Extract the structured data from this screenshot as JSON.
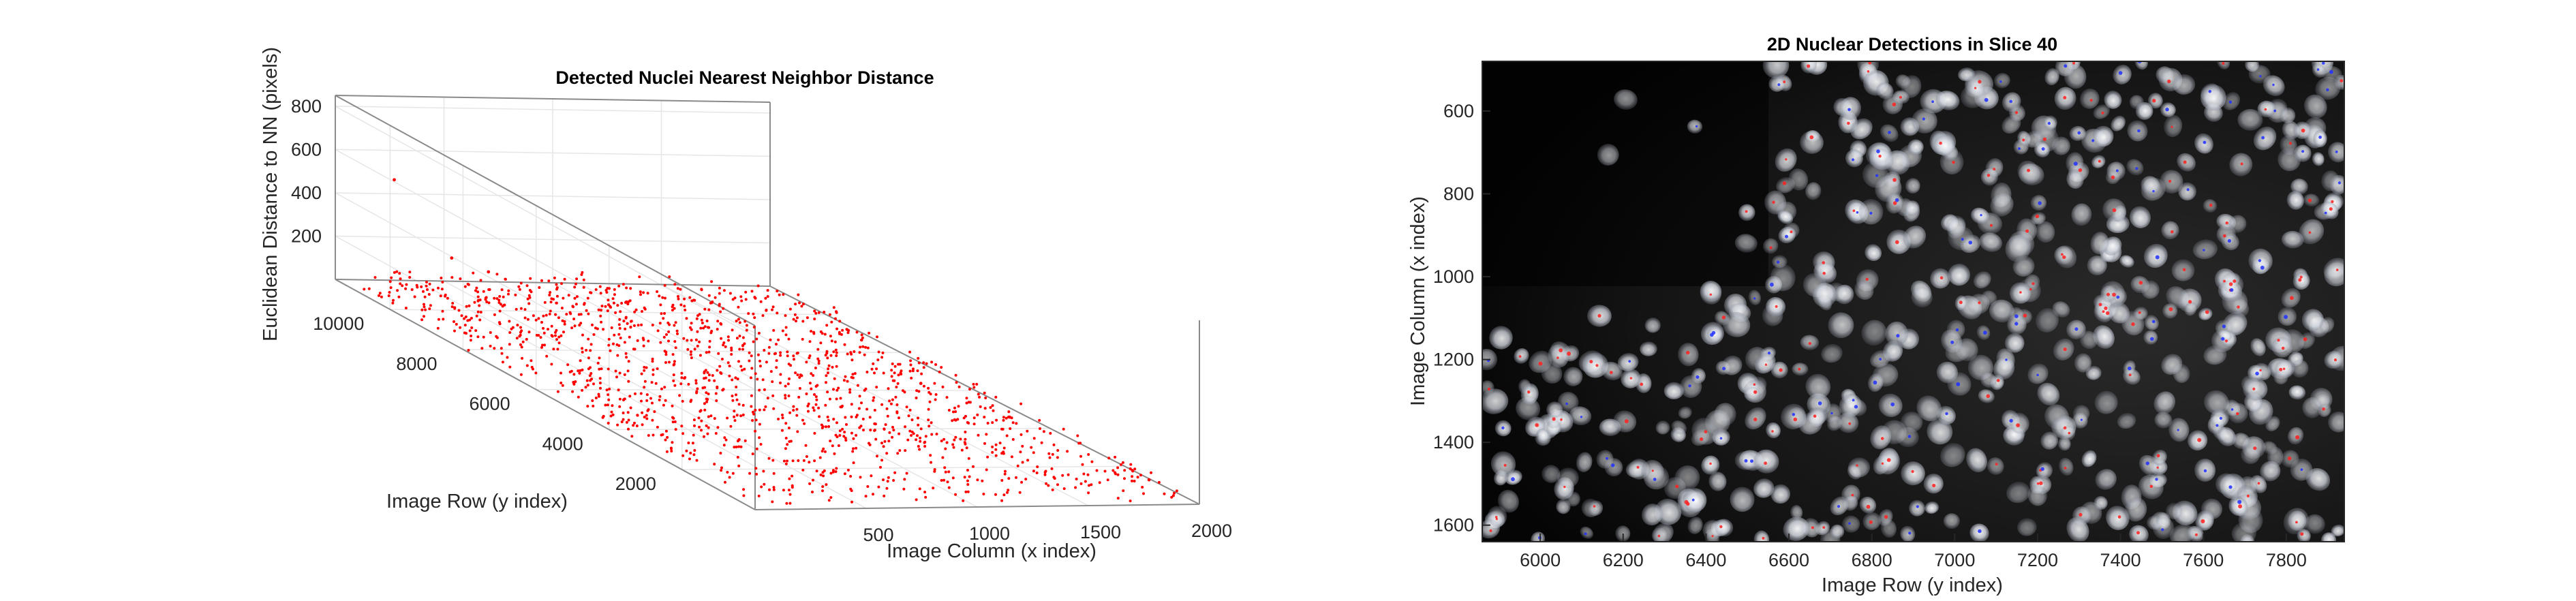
{
  "chart_data": [
    {
      "type": "scatter",
      "projection": "3d",
      "title": "Detected Nuclei Nearest Neighbor Distance",
      "xlabel": "Image Column (x index)",
      "ylabel": "Image Row (y index)",
      "zlabel": "Euclidean Distance to NN (pixels)",
      "x_ticks": [
        "500",
        "1000",
        "1500",
        "2000"
      ],
      "y_ticks": [
        "2000",
        "4000",
        "6000",
        "8000",
        "10000"
      ],
      "z_ticks": [
        "200",
        "400",
        "600",
        "800"
      ],
      "xlim": [
        0,
        2000
      ],
      "ylim": [
        0,
        11500
      ],
      "zlim": [
        0,
        850
      ],
      "grid": true,
      "marker_color": "#ff0000",
      "points_note_values": {
        "bulk_z_range": [
          10,
          90
        ],
        "outliers": [
          {
            "x": 120,
            "y": 10600,
            "z": 545
          },
          {
            "x": 350,
            "y": 10400,
            "z": 205
          },
          {
            "x": 620,
            "y": 11000,
            "z": 90
          },
          {
            "x": 1650,
            "y": 5400,
            "z": 85
          },
          {
            "x": 1850,
            "y": 4200,
            "z": 35
          },
          {
            "x": 1975,
            "y": 1200,
            "z": 8
          }
        ]
      }
    },
    {
      "type": "image",
      "title": "2D Nuclear Detections in Slice 40",
      "xlabel": "Image Row (y index)",
      "ylabel": "Image Column (x index)",
      "x_ticks": [
        "6000",
        "6200",
        "6400",
        "6600",
        "6800",
        "7000",
        "7200",
        "7400",
        "7600",
        "7800"
      ],
      "y_ticks": [
        "600",
        "800",
        "1000",
        "1200",
        "1400",
        "1600"
      ],
      "xlim": [
        5860,
        7940
      ],
      "ylim": [
        480,
        1640
      ],
      "y_direction": "reverse",
      "marker_colors": [
        "#ff2020",
        "#2030ff"
      ],
      "background": "#000000"
    }
  ]
}
